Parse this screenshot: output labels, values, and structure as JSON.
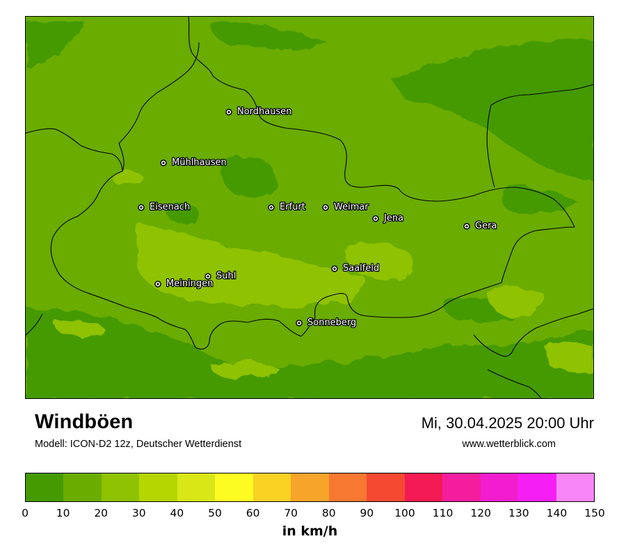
{
  "map": {
    "title": "Windböen",
    "model": "Modell: ICON-D2 12z, Deutscher Wetterdienst",
    "datetime": "Mi, 30.04.2025 20:00 Uhr",
    "website": "www.wetterblick.com",
    "cities": [
      {
        "name": "Nordhausen"
      },
      {
        "name": "Mühlhausen"
      },
      {
        "name": "Eisenach"
      },
      {
        "name": "Erfurt"
      },
      {
        "name": "Weimar"
      },
      {
        "name": "Jena"
      },
      {
        "name": "Gera"
      },
      {
        "name": "Saalfeld"
      },
      {
        "name": "Suhl"
      },
      {
        "name": "Meiningen"
      },
      {
        "name": "Sonneberg"
      }
    ]
  },
  "legend": {
    "unit": "in km/h",
    "ticks": [
      "0",
      "10",
      "20",
      "30",
      "40",
      "50",
      "60",
      "70",
      "80",
      "90",
      "100",
      "110",
      "120",
      "130",
      "140",
      "150"
    ],
    "colors": [
      "#459a00",
      "#6aac00",
      "#8fc200",
      "#b5d600",
      "#d9e716",
      "#fcfc23",
      "#f9d224",
      "#f7a42a",
      "#f77830",
      "#f54932",
      "#f41a53",
      "#f31d9e",
      "#f31dd0",
      "#f51ff5",
      "#f787f7"
    ]
  }
}
